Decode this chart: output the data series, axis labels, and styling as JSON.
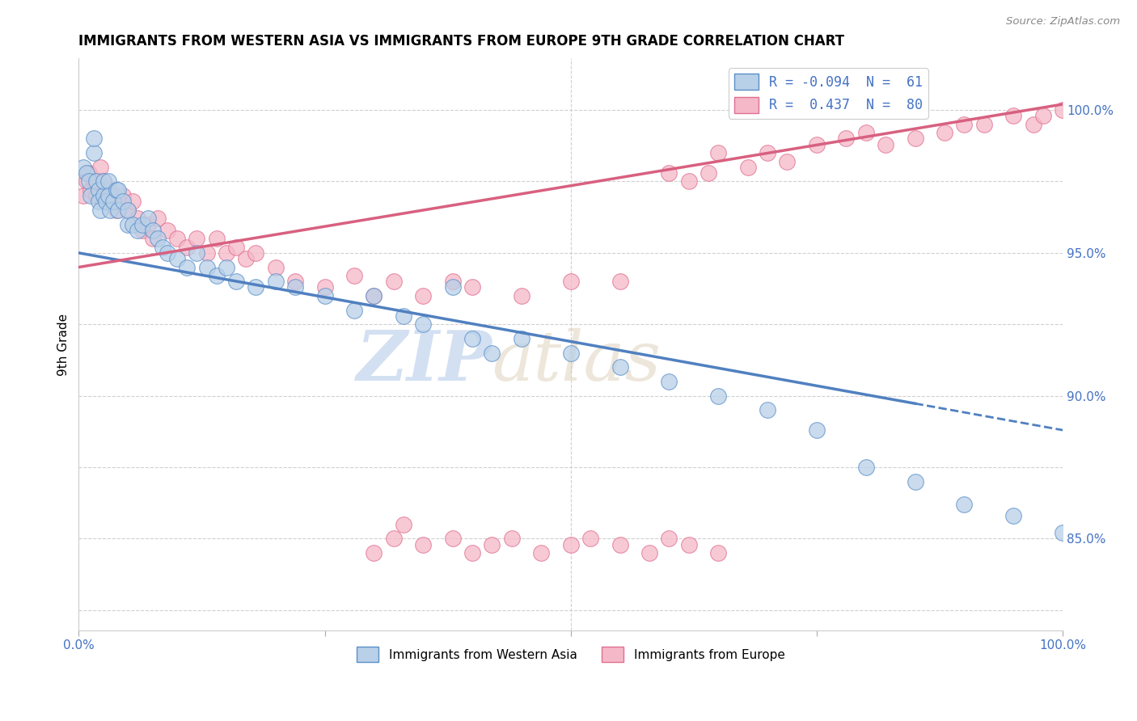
{
  "title": "IMMIGRANTS FROM WESTERN ASIA VS IMMIGRANTS FROM EUROPE 9TH GRADE CORRELATION CHART",
  "source": "Source: ZipAtlas.com",
  "ylabel": "9th Grade",
  "ytick_labels": [
    "100.0%",
    "95.0%",
    "90.0%",
    "85.0%"
  ],
  "ytick_values": [
    1.0,
    0.95,
    0.9,
    0.85
  ],
  "xlim": [
    0.0,
    1.0
  ],
  "ylim": [
    0.818,
    1.018
  ],
  "legend_label_blue": "R = -0.094  N =  61",
  "legend_label_pink": "R =  0.437  N =  80",
  "blue_fill": "#b8d0e8",
  "pink_fill": "#f5b8c8",
  "blue_edge": "#5b8fc9",
  "pink_edge": "#e07090",
  "blue_line": "#5080c0",
  "pink_line": "#d86080",
  "watermark_zip": "ZIP",
  "watermark_atlas": "atlas",
  "blue_scatter_x": [
    0.005,
    0.008,
    0.01,
    0.012,
    0.015,
    0.015,
    0.018,
    0.02,
    0.02,
    0.022,
    0.025,
    0.025,
    0.028,
    0.03,
    0.03,
    0.032,
    0.035,
    0.038,
    0.04,
    0.04,
    0.045,
    0.05,
    0.05,
    0.055,
    0.06,
    0.065,
    0.07,
    0.075,
    0.08,
    0.085,
    0.09,
    0.1,
    0.11,
    0.12,
    0.13,
    0.14,
    0.15,
    0.16,
    0.18,
    0.2,
    0.22,
    0.25,
    0.28,
    0.3,
    0.33,
    0.35,
    0.38,
    0.4,
    0.42,
    0.45,
    0.5,
    0.55,
    0.6,
    0.65,
    0.7,
    0.75,
    0.8,
    0.85,
    0.9,
    0.95,
    1.0
  ],
  "blue_scatter_y": [
    0.98,
    0.978,
    0.975,
    0.97,
    0.985,
    0.99,
    0.975,
    0.972,
    0.968,
    0.965,
    0.97,
    0.975,
    0.968,
    0.975,
    0.97,
    0.965,
    0.968,
    0.972,
    0.965,
    0.972,
    0.968,
    0.96,
    0.965,
    0.96,
    0.958,
    0.96,
    0.962,
    0.958,
    0.955,
    0.952,
    0.95,
    0.948,
    0.945,
    0.95,
    0.945,
    0.942,
    0.945,
    0.94,
    0.938,
    0.94,
    0.938,
    0.935,
    0.93,
    0.935,
    0.928,
    0.925,
    0.938,
    0.92,
    0.915,
    0.92,
    0.915,
    0.91,
    0.905,
    0.9,
    0.895,
    0.888,
    0.875,
    0.87,
    0.862,
    0.858,
    0.852
  ],
  "pink_scatter_x": [
    0.005,
    0.008,
    0.01,
    0.012,
    0.015,
    0.018,
    0.02,
    0.022,
    0.025,
    0.028,
    0.03,
    0.032,
    0.035,
    0.038,
    0.04,
    0.045,
    0.05,
    0.055,
    0.06,
    0.065,
    0.07,
    0.075,
    0.08,
    0.09,
    0.1,
    0.11,
    0.12,
    0.13,
    0.14,
    0.15,
    0.16,
    0.17,
    0.18,
    0.2,
    0.22,
    0.25,
    0.28,
    0.3,
    0.32,
    0.35,
    0.38,
    0.4,
    0.45,
    0.5,
    0.55,
    0.6,
    0.62,
    0.64,
    0.65,
    0.68,
    0.7,
    0.72,
    0.75,
    0.78,
    0.8,
    0.82,
    0.85,
    0.88,
    0.9,
    0.92,
    0.95,
    0.97,
    0.98,
    1.0,
    0.3,
    0.32,
    0.33,
    0.35,
    0.38,
    0.4,
    0.42,
    0.44,
    0.47,
    0.5,
    0.52,
    0.55,
    0.58,
    0.6,
    0.62,
    0.65
  ],
  "pink_scatter_y": [
    0.97,
    0.975,
    0.978,
    0.972,
    0.975,
    0.97,
    0.975,
    0.98,
    0.975,
    0.97,
    0.968,
    0.972,
    0.97,
    0.965,
    0.968,
    0.97,
    0.965,
    0.968,
    0.962,
    0.958,
    0.96,
    0.955,
    0.962,
    0.958,
    0.955,
    0.952,
    0.955,
    0.95,
    0.955,
    0.95,
    0.952,
    0.948,
    0.95,
    0.945,
    0.94,
    0.938,
    0.942,
    0.935,
    0.94,
    0.935,
    0.94,
    0.938,
    0.935,
    0.94,
    0.94,
    0.978,
    0.975,
    0.978,
    0.985,
    0.98,
    0.985,
    0.982,
    0.988,
    0.99,
    0.992,
    0.988,
    0.99,
    0.992,
    0.995,
    0.995,
    0.998,
    0.995,
    0.998,
    1.0,
    0.845,
    0.85,
    0.855,
    0.848,
    0.85,
    0.845,
    0.848,
    0.85,
    0.845,
    0.848,
    0.85,
    0.848,
    0.845,
    0.85,
    0.848,
    0.845
  ]
}
